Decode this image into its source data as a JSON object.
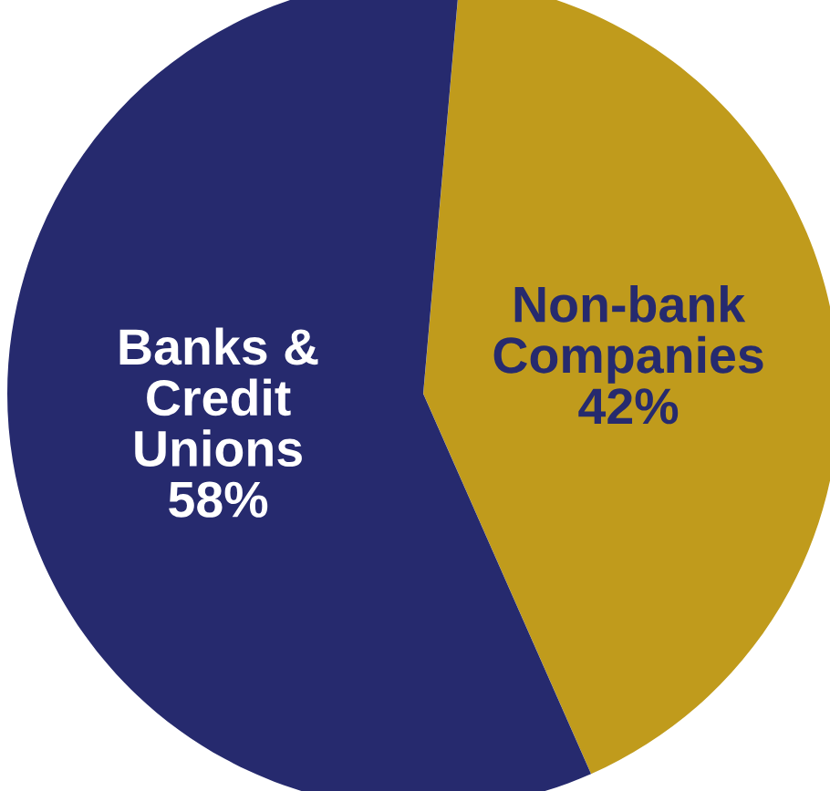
{
  "chart_data": {
    "type": "pie",
    "categories": [
      "Banks &\nCredit\nUnions",
      "Non-bank\nCompanies"
    ],
    "values": [
      58,
      42
    ],
    "colors": [
      "#262a6e",
      "#c09b1c"
    ],
    "value_labels": [
      "58%",
      "42%"
    ]
  }
}
